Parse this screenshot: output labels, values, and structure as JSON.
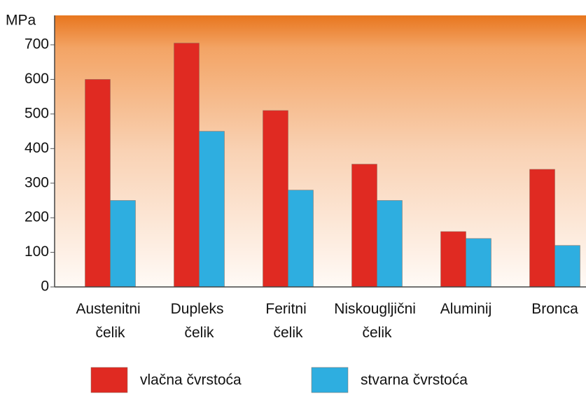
{
  "chart_data": {
    "type": "bar",
    "y_label": "MPa",
    "categories": [
      "Austenitni čelik",
      "Dupleks čelik",
      "Feritni čelik",
      "Niskougljični čelik",
      "Aluminij",
      "Bronca"
    ],
    "series": [
      {
        "name": "vlačna čvrstoća",
        "color": "#e02a22",
        "values": [
          600,
          705,
          510,
          355,
          160,
          340
        ]
      },
      {
        "name": "stvarna čvrstoća",
        "color": "#2eaee0",
        "values": [
          250,
          450,
          280,
          250,
          140,
          120
        ]
      }
    ],
    "ylim": [
      0,
      785
    ],
    "yticks": [
      0,
      100,
      200,
      300,
      400,
      500,
      600,
      700
    ]
  }
}
